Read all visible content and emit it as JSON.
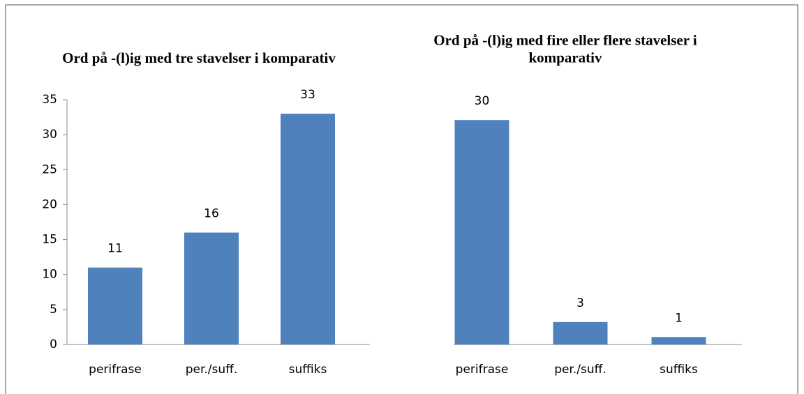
{
  "chart_data": [
    {
      "type": "bar",
      "title": "Ord på -(l)ig med tre stavelser i komparativ",
      "categories": [
        "perifrase",
        "per./suff.",
        "suffiks"
      ],
      "values": [
        11,
        16,
        33
      ],
      "color": "#4f81bd",
      "ylim": [
        0,
        35
      ],
      "yticks": [
        0,
        5,
        10,
        15,
        20,
        25,
        30,
        35
      ]
    },
    {
      "type": "bar",
      "title": "Ord på -(l)ig med fire eller flere stavelser i komparativ",
      "categories": [
        "perifrase",
        "per./suff.",
        "suffiks"
      ],
      "values": [
        30,
        3,
        1
      ],
      "color": "#4f81bd",
      "ylim": [
        0,
        33
      ]
    }
  ]
}
